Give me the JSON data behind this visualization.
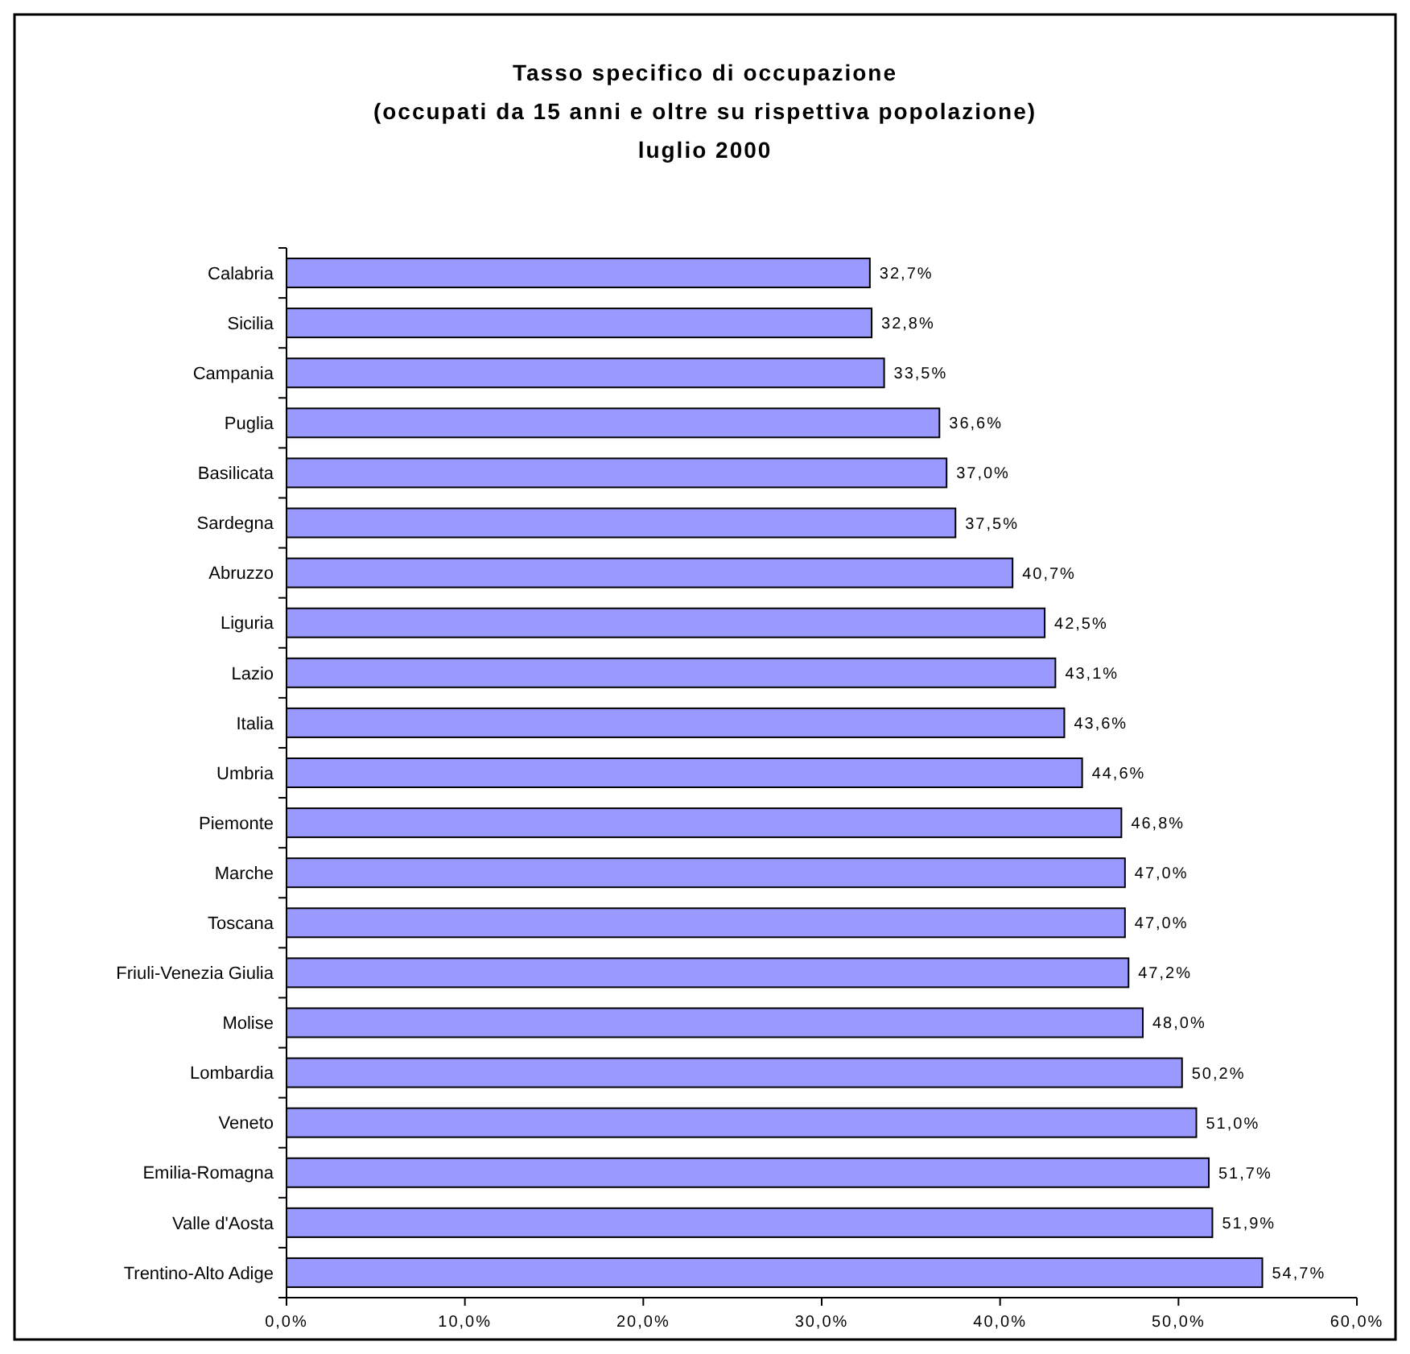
{
  "chart_data": {
    "type": "bar",
    "orientation": "horizontal",
    "title": "Tasso specifico di occupazione\n(occupati da 15 anni e oltre su rispettiva popolazione)\nluglio 2000",
    "categories": [
      "Calabria",
      "Sicilia",
      "Campania",
      "Puglia",
      "Basilicata",
      "Sardegna",
      "Abruzzo",
      "Liguria",
      "Lazio",
      "Italia",
      "Umbria",
      "Piemonte",
      "Marche",
      "Toscana",
      "Friuli-Venezia Giulia",
      "Molise",
      "Lombardia",
      "Veneto",
      "Emilia-Romagna",
      "Valle d'Aosta",
      "Trentino-Alto Adige"
    ],
    "values": [
      32.7,
      32.8,
      33.5,
      36.6,
      37.0,
      37.5,
      40.7,
      42.5,
      43.1,
      43.6,
      44.6,
      46.8,
      47.0,
      47.0,
      47.2,
      48.0,
      50.2,
      51.0,
      51.7,
      51.9,
      54.7
    ],
    "value_labels": [
      "32,7%",
      "32,8%",
      "33,5%",
      "36,6%",
      "37,0%",
      "37,5%",
      "40,7%",
      "42,5%",
      "43,1%",
      "43,6%",
      "44,6%",
      "46,8%",
      "47,0%",
      "47,0%",
      "47,2%",
      "48,0%",
      "50,2%",
      "51,0%",
      "51,7%",
      "51,9%",
      "54,7%"
    ],
    "color": "#9999ff",
    "xlim": [
      0,
      60
    ],
    "xticks": [
      {
        "value": 0,
        "label": "0,0%"
      },
      {
        "value": 10,
        "label": "10,0%"
      },
      {
        "value": 20,
        "label": "20,0%"
      },
      {
        "value": 30,
        "label": "30,0%"
      },
      {
        "value": 40,
        "label": "40,0%"
      },
      {
        "value": 50,
        "label": "50,0%"
      },
      {
        "value": 60,
        "label": "60,0%"
      }
    ]
  }
}
